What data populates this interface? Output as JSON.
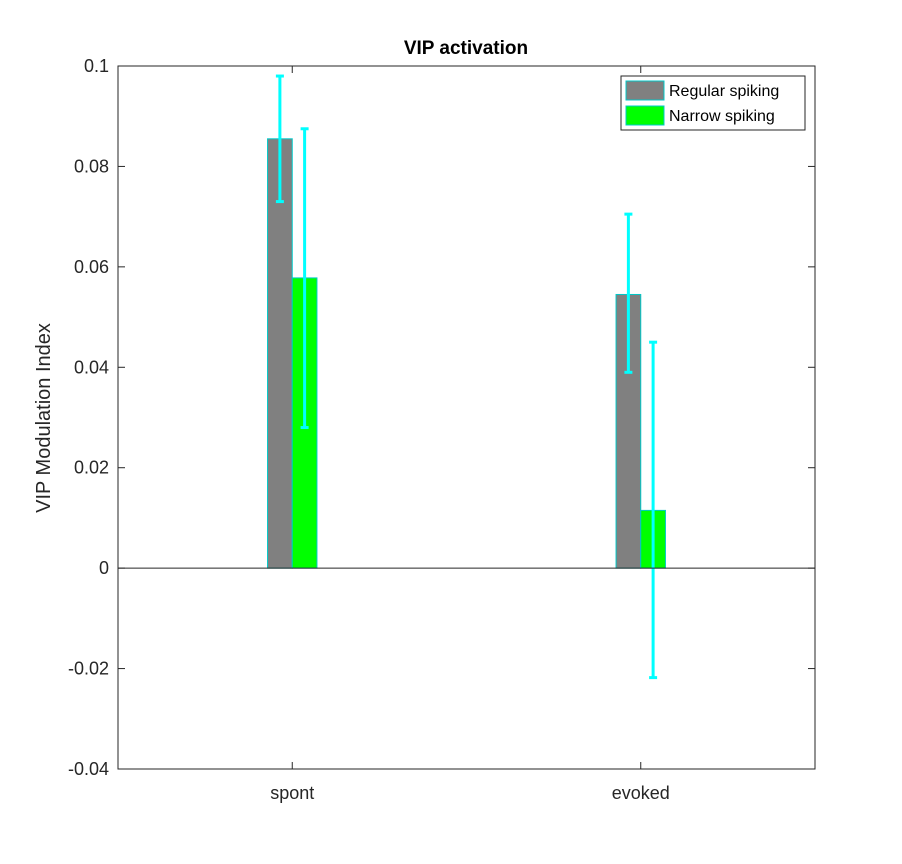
{
  "chart_data": {
    "type": "bar",
    "title": "VIP activation",
    "xlabel": "",
    "ylabel": "VIP Modulation Index",
    "categories": [
      "spont",
      "evoked"
    ],
    "ylim": [
      -0.04,
      0.1
    ],
    "yticks": [
      -0.04,
      -0.02,
      0,
      0.02,
      0.04,
      0.06,
      0.08,
      0.1
    ],
    "ytick_labels": [
      "-0.04",
      "-0.02",
      "0",
      "0.02",
      "0.04",
      "0.06",
      "0.08",
      "0.1"
    ],
    "grid": false,
    "legend_position": "top-right",
    "series": [
      {
        "name": "Regular spiking",
        "color": "#808080",
        "edge_color": "#00c8c8",
        "values": [
          0.0855,
          0.0545
        ],
        "error_low": [
          0.073,
          0.039
        ],
        "error_high": [
          0.098,
          0.0705
        ]
      },
      {
        "name": "Narrow spiking",
        "color": "#00ff00",
        "edge_color": "#00c8c8",
        "values": [
          0.0578,
          0.0115
        ],
        "error_low": [
          0.028,
          -0.0218
        ],
        "error_high": [
          0.0875,
          0.045
        ]
      }
    ],
    "errorbar_color": "#00ffff"
  }
}
